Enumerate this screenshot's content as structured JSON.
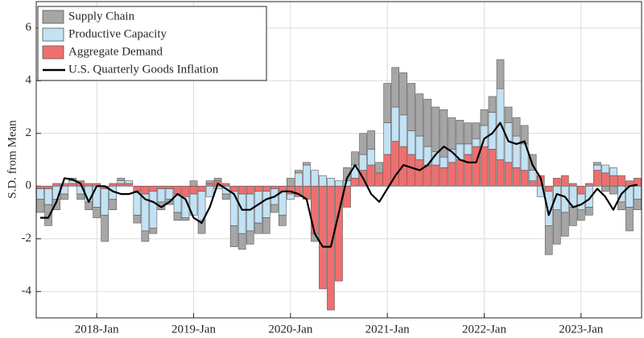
{
  "chart_data": {
    "type": "bar",
    "stacked": true,
    "ylabel": "S.D. from Mean",
    "ylim": [
      -5,
      7
    ],
    "yticks": [
      -4,
      -2,
      0,
      2,
      4,
      6
    ],
    "grid": true,
    "legend": "upper left",
    "categories": [
      null,
      null,
      null,
      null,
      null,
      null,
      null,
      "2018-Jan",
      null,
      null,
      null,
      null,
      null,
      null,
      null,
      null,
      null,
      null,
      null,
      "2019-Jan",
      null,
      null,
      null,
      null,
      null,
      null,
      null,
      null,
      null,
      null,
      null,
      "2020-Jan",
      null,
      null,
      null,
      null,
      null,
      null,
      null,
      null,
      null,
      null,
      null,
      "2021-Jan",
      null,
      null,
      null,
      null,
      null,
      null,
      null,
      null,
      null,
      null,
      null,
      "2022-Jan",
      null,
      null,
      null,
      null,
      null,
      null,
      null,
      null,
      null,
      null,
      null,
      "2023-Jan",
      null,
      null,
      null,
      null,
      null,
      null,
      null
    ],
    "series": [
      {
        "name": "Supply Chain",
        "color": "#a6a6a6",
        "values": [
          -0.5,
          -0.8,
          -0.4,
          -0.2,
          0.1,
          -0.2,
          -0.3,
          -0.4,
          -1.0,
          -0.4,
          0.1,
          0.0,
          -0.3,
          -0.4,
          -0.2,
          -0.3,
          -0.2,
          -0.3,
          -0.1,
          0.2,
          -0.5,
          0.1,
          0.1,
          -0.2,
          -0.8,
          -0.6,
          -0.5,
          -0.4,
          -0.6,
          -0.3,
          -0.4,
          0.3,
          0.1,
          0.1,
          -0.3,
          0.0,
          0.0,
          0.0,
          0.5,
          0.5,
          0.8,
          0.7,
          0.4,
          1.5,
          1.5,
          1.6,
          1.8,
          1.6,
          1.8,
          1.7,
          1.8,
          1.2,
          0.9,
          0.8,
          0.6,
          0.6,
          0.6,
          1.1,
          0.6,
          0.7,
          0.7,
          0.6,
          0.0,
          -1.1,
          -1.3,
          -0.9,
          -0.7,
          -0.4,
          -0.3,
          0.1,
          -0.2,
          -0.3,
          -0.3,
          -0.9,
          -0.4
        ]
      },
      {
        "name": "Productive Capacity",
        "color": "#c3e2f4",
        "values": [
          -0.4,
          -0.6,
          -0.5,
          -0.3,
          0.1,
          -0.3,
          -0.6,
          -0.8,
          -1.0,
          -0.5,
          0.1,
          0.1,
          -0.9,
          -1.4,
          -1.4,
          -0.5,
          -0.4,
          -0.7,
          -0.8,
          -0.8,
          -1.1,
          -0.4,
          -0.1,
          -0.3,
          -1.3,
          -1.5,
          -1.4,
          -1.2,
          -1.0,
          -0.6,
          -0.9,
          -0.2,
          0.5,
          0.8,
          0.6,
          0.4,
          0.3,
          0.2,
          0.2,
          0.5,
          0.6,
          0.6,
          0.0,
          1.2,
          1.3,
          1.2,
          0.9,
          0.9,
          0.7,
          0.5,
          0.4,
          0.5,
          0.6,
          0.4,
          0.3,
          0.8,
          1.4,
          2.7,
          1.5,
          1.2,
          1.0,
          0.4,
          -0.4,
          -1.3,
          -0.9,
          -1.0,
          -0.8,
          -0.6,
          -0.8,
          0.2,
          0.3,
          0.3,
          -0.6,
          -0.8,
          -0.5
        ]
      },
      {
        "name": "Aggregate Demand",
        "color": "#f06e6e",
        "values": [
          -0.1,
          -0.1,
          0.1,
          0.1,
          0.1,
          0.2,
          0.1,
          0.1,
          -0.1,
          0.1,
          0.1,
          0.1,
          -0.2,
          -0.3,
          -0.2,
          -0.1,
          -0.1,
          -0.3,
          -0.4,
          -0.3,
          -0.2,
          0.1,
          0.2,
          0.1,
          -0.2,
          -0.3,
          -0.3,
          -0.2,
          -0.2,
          -0.1,
          -0.2,
          -0.3,
          -0.4,
          -0.5,
          -1.8,
          -3.9,
          -4.7,
          -3.6,
          -0.8,
          0.3,
          0.6,
          0.8,
          0.5,
          1.2,
          1.7,
          1.5,
          1.2,
          1.0,
          0.8,
          0.8,
          0.7,
          0.9,
          1.0,
          1.2,
          1.5,
          1.5,
          1.4,
          1.0,
          0.9,
          0.7,
          0.6,
          0.2,
          0.4,
          -0.2,
          0.3,
          0.4,
          0.1,
          -0.3,
          0.1,
          0.6,
          0.5,
          0.4,
          0.4,
          0.2,
          0.3
        ]
      },
      {
        "name": "U.S. Quarterly Goods Inflation",
        "color": "#000000",
        "type": "line",
        "values": [
          -1.2,
          -1.2,
          -0.6,
          0.3,
          0.25,
          0.1,
          -0.6,
          0.0,
          0.0,
          -0.2,
          -0.3,
          -0.3,
          -0.2,
          -0.5,
          -0.6,
          -0.8,
          -0.6,
          -0.3,
          -0.5,
          -1.2,
          -1.4,
          -0.8,
          0.1,
          -0.1,
          -0.3,
          -0.9,
          -0.9,
          -0.7,
          -0.5,
          -0.4,
          -0.2,
          -0.2,
          -0.3,
          -0.5,
          -1.8,
          -2.3,
          -2.3,
          -1.0,
          0.3,
          0.8,
          0.3,
          -0.3,
          -0.6,
          -0.1,
          0.4,
          0.8,
          0.7,
          0.6,
          0.8,
          1.2,
          1.5,
          1.3,
          1.0,
          0.9,
          0.9,
          1.8,
          2.0,
          2.4,
          1.7,
          1.6,
          1.7,
          0.8,
          0.3,
          -1.1,
          -0.3,
          -0.4,
          -0.8,
          -0.7,
          -0.5,
          -0.1,
          -0.4,
          -0.9,
          -0.3,
          0.0,
          0.05
        ]
      }
    ]
  }
}
